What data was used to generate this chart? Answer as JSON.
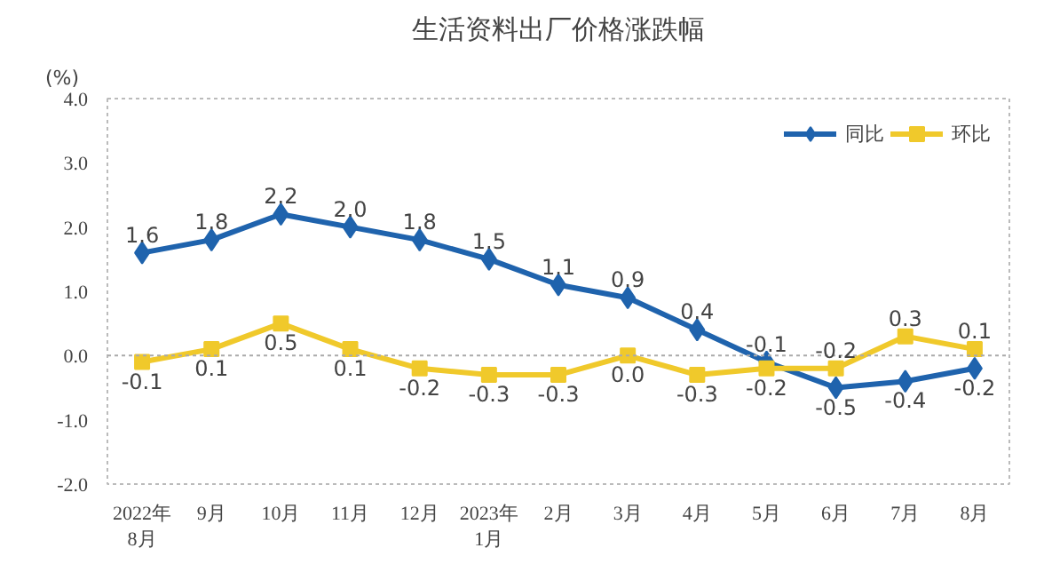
{
  "chart_data": {
    "type": "line",
    "title": "生活资料出厂价格涨跌幅",
    "ylabel": "(%)",
    "categories": [
      "2022年\n8月",
      "9月",
      "10月",
      "11月",
      "12月",
      "2023年\n1月",
      "2月",
      "3月",
      "4月",
      "5月",
      "6月",
      "7月",
      "8月"
    ],
    "series": [
      {
        "name": "同比",
        "color": "#1f63ad",
        "marker": "diamond",
        "values": [
          1.6,
          1.8,
          2.2,
          2.0,
          1.8,
          1.5,
          1.1,
          0.9,
          0.4,
          -0.1,
          -0.5,
          -0.4,
          -0.2
        ],
        "value_labels": [
          "1.6",
          "1.8",
          "2.2",
          "2.0",
          "1.8",
          "1.5",
          "1.1",
          "0.9",
          "0.4",
          "-0.1",
          "-0.5",
          "-0.4",
          "-0.2"
        ]
      },
      {
        "name": "环比",
        "color": "#f0c92b",
        "marker": "square",
        "values": [
          -0.1,
          0.1,
          0.5,
          0.1,
          -0.2,
          -0.3,
          -0.3,
          0.0,
          -0.3,
          -0.2,
          -0.2,
          0.3,
          0.1
        ],
        "value_labels": [
          "-0.1",
          "0.1",
          "0.5",
          "0.1",
          "-0.2",
          "-0.3",
          "-0.3",
          "0.0",
          "-0.3",
          "-0.2",
          "-0.2",
          "0.3",
          "0.1"
        ]
      }
    ],
    "ylim": [
      -2,
      4
    ],
    "yticks": [
      {
        "value": -2,
        "label": "-2.0"
      },
      {
        "value": -1,
        "label": "-1.0"
      },
      {
        "value": 0,
        "label": "0.0"
      },
      {
        "value": 1,
        "label": "1.0"
      },
      {
        "value": 2,
        "label": "2.0"
      },
      {
        "value": 3,
        "label": "3.0"
      },
      {
        "value": 4,
        "label": "4.0"
      }
    ],
    "ref_lines": [
      {
        "axis": "y",
        "value": 0,
        "line_style": "dotted"
      }
    ],
    "grid": false,
    "legend": "top right",
    "line_style": "solid"
  }
}
